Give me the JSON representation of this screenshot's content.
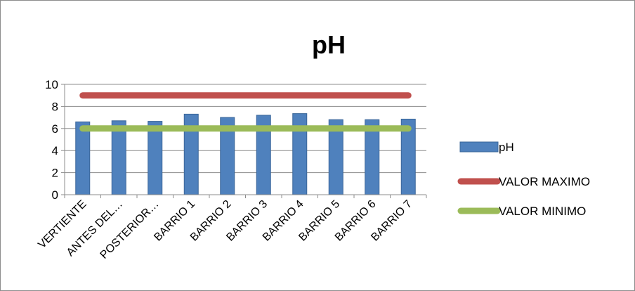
{
  "chart_data": {
    "type": "bar",
    "title": "pH",
    "categories": [
      "VERTIENTE",
      "ANTES DEL…",
      "POSTERIOR…",
      "BARRIO 1",
      "BARRIO 2",
      "BARRIO 3",
      "BARRIO 4",
      "BARRIO 5",
      "BARRIO 6",
      "BARRIO 7"
    ],
    "series": [
      {
        "name": "pH",
        "kind": "bar",
        "color": "#4f81bd",
        "values": [
          6.6,
          6.7,
          6.65,
          7.3,
          7.0,
          7.2,
          7.35,
          6.8,
          6.8,
          6.85
        ]
      },
      {
        "name": "VALOR MAXIMO",
        "kind": "line",
        "color": "#c0504d",
        "values": [
          9,
          9,
          9,
          9,
          9,
          9,
          9,
          9,
          9,
          9
        ]
      },
      {
        "name": "VALOR MINIMO",
        "kind": "line",
        "color": "#9bbb59",
        "values": [
          6,
          6,
          6,
          6,
          6,
          6,
          6,
          6,
          6,
          6
        ]
      }
    ],
    "y_ticks": [
      "0",
      "2",
      "4",
      "6",
      "8",
      "10"
    ],
    "ylim": [
      0,
      10
    ],
    "xlabel": "",
    "ylabel": "",
    "grid": true,
    "legend_position": "right"
  }
}
